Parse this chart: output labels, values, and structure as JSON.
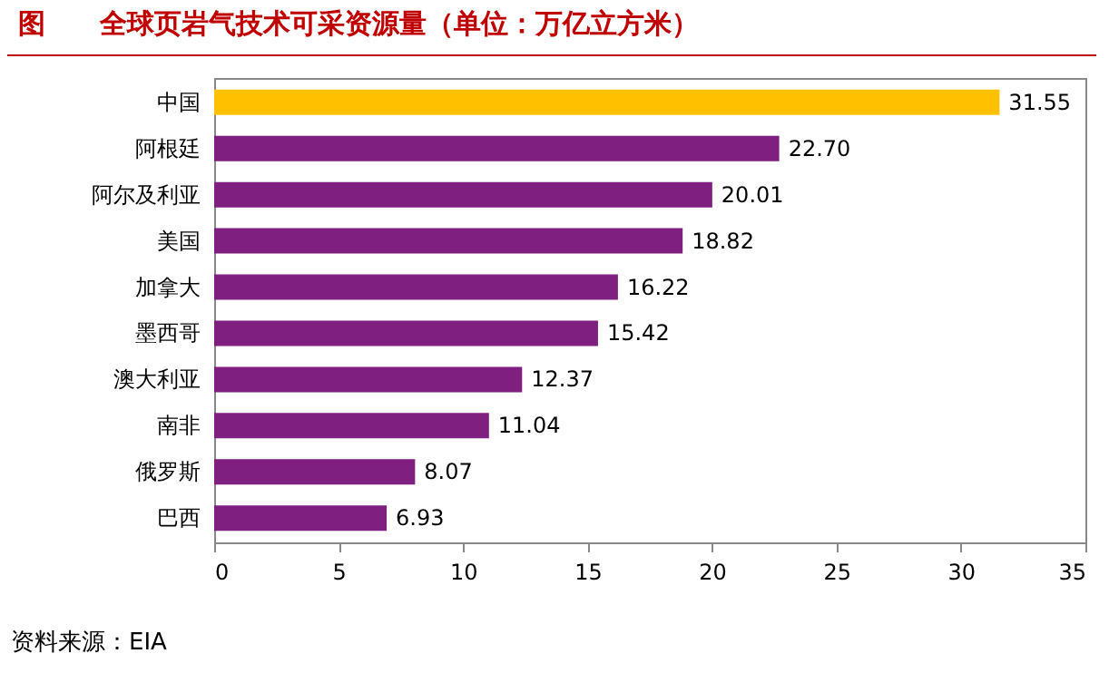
{
  "chart_data": {
    "type": "bar",
    "orientation": "horizontal",
    "title": "图　　全球页岩气技术可采资源量（单位：万亿立方米）",
    "categories": [
      "中国",
      "阿根廷",
      "阿尔及利亚",
      "美国",
      "加拿大",
      "墨西哥",
      "澳大利亚",
      "南非",
      "俄罗斯",
      "巴西"
    ],
    "values": [
      31.55,
      22.7,
      20.01,
      18.82,
      16.22,
      15.42,
      12.37,
      11.04,
      8.07,
      6.93
    ],
    "value_labels": [
      "31.55",
      "22.70",
      "20.01",
      "18.82",
      "16.22",
      "15.42",
      "12.37",
      "11.04",
      "8.07",
      "6.93"
    ],
    "colors": [
      "#ffc000",
      "#7f1f7f",
      "#7f1f7f",
      "#7f1f7f",
      "#7f1f7f",
      "#7f1f7f",
      "#7f1f7f",
      "#7f1f7f",
      "#7f1f7f",
      "#7f1f7f"
    ],
    "xlim": [
      0,
      35
    ],
    "xticks": [
      0,
      5,
      10,
      15,
      20,
      25,
      30,
      35
    ],
    "grid": false,
    "annotations": [
      "资料来源：EIA"
    ]
  }
}
